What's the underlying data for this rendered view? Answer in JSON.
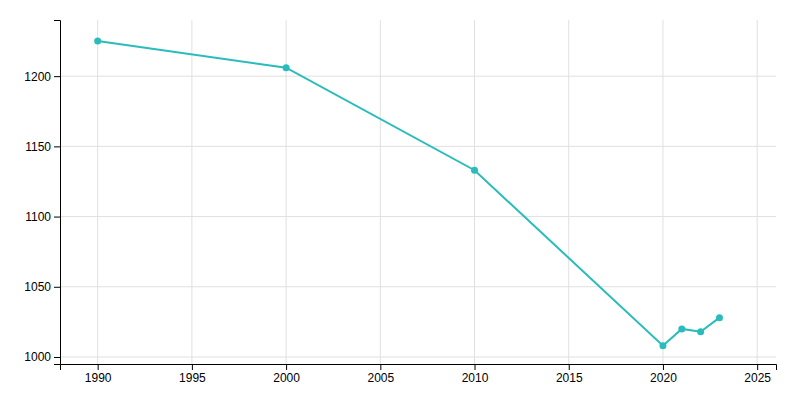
{
  "chart_data": {
    "type": "line",
    "x": [
      1990,
      2000,
      2010,
      2020,
      2021,
      2022,
      2023
    ],
    "values": [
      1225,
      1206,
      1133,
      1008,
      1020,
      1018,
      1028
    ],
    "color": "#2abcbc",
    "marker": "circle",
    "xlim": [
      1988,
      2026
    ],
    "ylim": [
      995,
      1240
    ],
    "xticks": [
      1990,
      1995,
      2000,
      2005,
      2010,
      2015,
      2020,
      2025
    ],
    "yticks": [
      1000,
      1050,
      1100,
      1150,
      1200
    ],
    "grid": true
  }
}
